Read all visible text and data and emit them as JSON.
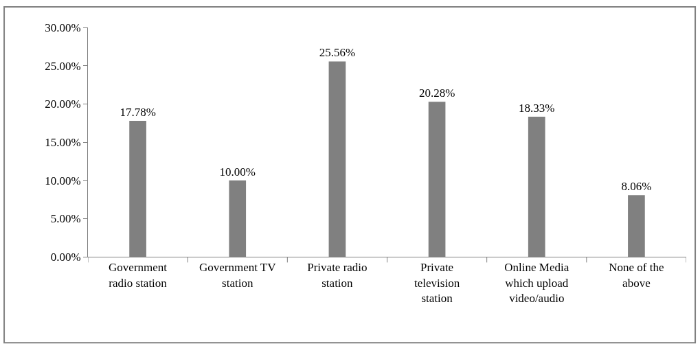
{
  "chart_data": {
    "type": "bar",
    "categories": [
      "Government radio station",
      "Government TV station",
      "Private radio station",
      "Private television station",
      "Online Media which upload video/audio",
      "None of the above"
    ],
    "values": [
      17.78,
      10.0,
      25.56,
      20.28,
      18.33,
      8.06
    ],
    "value_labels": [
      "17.78%",
      "10.00%",
      "25.56%",
      "20.28%",
      "18.33%",
      "8.06%"
    ],
    "color": "#808080",
    "ylim": [
      0,
      30
    ],
    "yticks": [
      {
        "value": 0,
        "label": "0.00%"
      },
      {
        "value": 5,
        "label": "5.00%"
      },
      {
        "value": 10,
        "label": "10.00%"
      },
      {
        "value": 15,
        "label": "15.00%"
      },
      {
        "value": 20,
        "label": "20.00%"
      },
      {
        "value": 25,
        "label": "25.00%"
      },
      {
        "value": 30,
        "label": "30.00%"
      }
    ],
    "legend": false
  }
}
